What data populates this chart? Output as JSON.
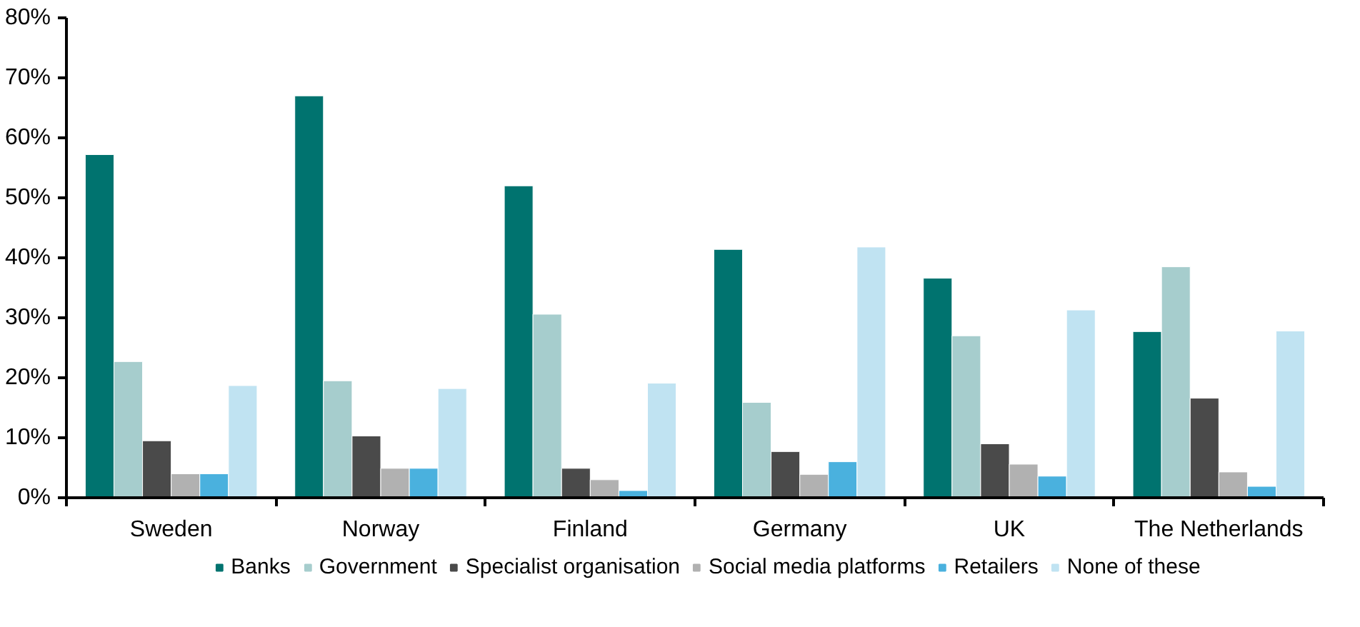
{
  "chart_data": {
    "type": "bar",
    "categories": [
      "Sweden",
      "Norway",
      "Finland",
      "Germany",
      "UK",
      "The Netherlands"
    ],
    "series": [
      {
        "name": "Banks",
        "color": "#00736f",
        "values": [
          57.2,
          67.0,
          52.0,
          41.4,
          36.6,
          27.7
        ]
      },
      {
        "name": "Government",
        "color": "#a6cdcd",
        "values": [
          22.7,
          19.5,
          30.6,
          15.9,
          27.0,
          38.5
        ]
      },
      {
        "name": "Specialist organisation",
        "color": "#4a4a4a",
        "values": [
          9.5,
          10.3,
          4.9,
          7.7,
          9.0,
          16.6
        ]
      },
      {
        "name": "Social media platforms",
        "color": "#b1b1b1",
        "values": [
          4.0,
          4.9,
          3.0,
          3.9,
          5.6,
          4.3
        ]
      },
      {
        "name": "Retailers",
        "color": "#4ab1de",
        "values": [
          4.0,
          4.9,
          1.2,
          6.0,
          3.6,
          1.9
        ]
      },
      {
        "name": "None of these",
        "color": "#c0e3f2",
        "values": [
          18.7,
          18.2,
          19.1,
          41.8,
          31.3,
          27.8
        ]
      }
    ],
    "ylim": [
      0,
      80
    ],
    "yticks": [
      {
        "value": 0,
        "label": "0%"
      },
      {
        "value": 10,
        "label": "10%"
      },
      {
        "value": 20,
        "label": "20%"
      },
      {
        "value": 30,
        "label": "30%"
      },
      {
        "value": 40,
        "label": "40%"
      },
      {
        "value": 50,
        "label": "50%"
      },
      {
        "value": 60,
        "label": "60%"
      },
      {
        "value": 70,
        "label": "70%"
      },
      {
        "value": 80,
        "label": "80%"
      }
    ],
    "grid": false,
    "legend": "bottom"
  }
}
